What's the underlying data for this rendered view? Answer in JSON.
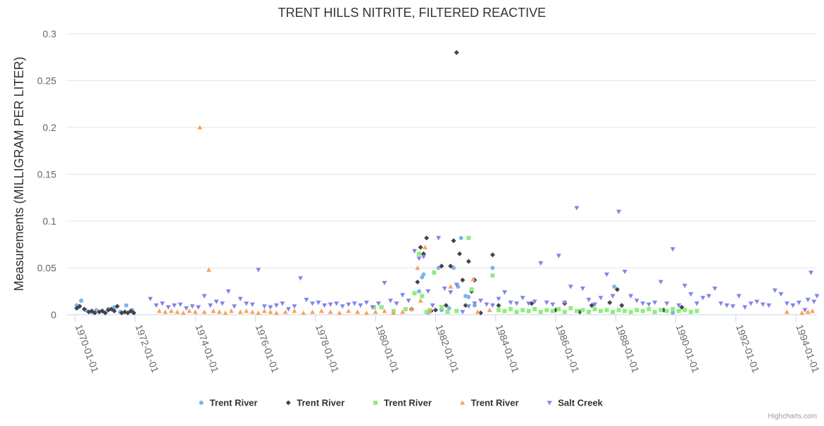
{
  "chart_data": {
    "type": "scatter",
    "title": "TRENT HILLS NITRITE, FILTERED REACTIVE",
    "ylabel": "Measurements (MILLIGRAM PER LITER)",
    "xlabel": "",
    "ylim": [
      0,
      0.3
    ],
    "yticks": [
      0,
      0.05,
      0.1,
      0.15,
      0.2,
      0.25,
      0.3
    ],
    "ytick_labels": [
      "0",
      "0.05",
      "0.1",
      "0.15",
      "0.2",
      "0.25",
      "0.3"
    ],
    "xlim": [
      1969.7,
      1994.7
    ],
    "xticks": [
      1970,
      1972,
      1974,
      1976,
      1978,
      1980,
      1982,
      1984,
      1986,
      1988,
      1990,
      1992,
      1994
    ],
    "xtick_labels": [
      "1970-01-01",
      "1972-01-01",
      "1974-01-01",
      "1976-01-01",
      "1978-01-01",
      "1980-01-01",
      "1982-01-01",
      "1984-01-01",
      "1986-01-01",
      "1988-01-01",
      "1990-01-01",
      "1992-01-01",
      "1994-01-01"
    ],
    "legend_position": "bottom-center",
    "series": [
      {
        "name": "Trent River",
        "marker": "circle",
        "color": "#7cb5ec",
        "points": [
          [
            1970.05,
            0.01
          ],
          [
            1970.2,
            0.015
          ],
          [
            1970.35,
            0.005
          ],
          [
            1970.55,
            0.003
          ],
          [
            1970.7,
            0.005
          ],
          [
            1970.9,
            0.004
          ],
          [
            1971.1,
            0.006
          ],
          [
            1971.3,
            0.008
          ],
          [
            1971.5,
            0.003
          ],
          [
            1971.7,
            0.01
          ],
          [
            1971.9,
            0.005
          ],
          [
            1981.3,
            0.023
          ],
          [
            1981.45,
            0.025
          ],
          [
            1981.55,
            0.04
          ],
          [
            1981.6,
            0.043
          ],
          [
            1981.75,
            0.002
          ],
          [
            1982.1,
            0.05
          ],
          [
            1982.2,
            0.005
          ],
          [
            1982.45,
            0.007
          ],
          [
            1982.6,
            0.05
          ],
          [
            1982.75,
            0.03
          ],
          [
            1982.85,
            0.082
          ],
          [
            1983.0,
            0.02
          ],
          [
            1983.1,
            0.019
          ],
          [
            1983.3,
            0.01
          ],
          [
            1983.9,
            0.05
          ],
          [
            1987.95,
            0.03
          ],
          [
            1989.9,
            0.002
          ]
        ]
      },
      {
        "name": "Trent River",
        "marker": "diamond",
        "color": "#434348",
        "points": [
          [
            1970.05,
            0.007
          ],
          [
            1970.15,
            0.009
          ],
          [
            1970.3,
            0.006
          ],
          [
            1970.45,
            0.003
          ],
          [
            1970.55,
            0.004
          ],
          [
            1970.65,
            0.002
          ],
          [
            1970.8,
            0.003
          ],
          [
            1970.9,
            0.004
          ],
          [
            1971.0,
            0.002
          ],
          [
            1971.1,
            0.005
          ],
          [
            1971.2,
            0.006
          ],
          [
            1971.3,
            0.004
          ],
          [
            1971.4,
            0.009
          ],
          [
            1971.55,
            0.002
          ],
          [
            1971.65,
            0.003
          ],
          [
            1971.75,
            0.002
          ],
          [
            1971.85,
            0.004
          ],
          [
            1971.95,
            0.002
          ],
          [
            1981.2,
            0.006
          ],
          [
            1981.4,
            0.035
          ],
          [
            1981.5,
            0.072
          ],
          [
            1981.6,
            0.065
          ],
          [
            1981.7,
            0.082
          ],
          [
            1981.85,
            0.004
          ],
          [
            1982.0,
            0.005
          ],
          [
            1982.2,
            0.052
          ],
          [
            1982.35,
            0.01
          ],
          [
            1982.5,
            0.052
          ],
          [
            1982.6,
            0.079
          ],
          [
            1982.7,
            0.28
          ],
          [
            1982.8,
            0.065
          ],
          [
            1982.9,
            0.037
          ],
          [
            1983.0,
            0.01
          ],
          [
            1983.1,
            0.057
          ],
          [
            1983.2,
            0.025
          ],
          [
            1983.3,
            0.037
          ],
          [
            1983.5,
            0.002
          ],
          [
            1983.9,
            0.064
          ],
          [
            1984.1,
            0.01
          ],
          [
            1985.2,
            0.012
          ],
          [
            1986.0,
            0.005
          ],
          [
            1986.3,
            0.012
          ],
          [
            1986.8,
            0.003
          ],
          [
            1987.2,
            0.01
          ],
          [
            1987.8,
            0.013
          ],
          [
            1988.05,
            0.027
          ],
          [
            1988.2,
            0.01
          ],
          [
            1989.6,
            0.005
          ],
          [
            1990.2,
            0.008
          ]
        ]
      },
      {
        "name": "Trent River",
        "marker": "square",
        "color": "#90ed7d",
        "points": [
          [
            1979.95,
            0.008
          ],
          [
            1980.2,
            0.008
          ],
          [
            1980.6,
            0.004
          ],
          [
            1981.0,
            0.006
          ],
          [
            1981.3,
            0.023
          ],
          [
            1981.45,
            0.065
          ],
          [
            1981.55,
            0.02
          ],
          [
            1981.7,
            0.003
          ],
          [
            1981.8,
            0.005
          ],
          [
            1981.95,
            0.045
          ],
          [
            1982.2,
            0.008
          ],
          [
            1982.4,
            0.003
          ],
          [
            1982.7,
            0.004
          ],
          [
            1983.1,
            0.082
          ],
          [
            1983.2,
            0.027
          ],
          [
            1983.9,
            0.042
          ],
          [
            1984.1,
            0.005
          ],
          [
            1984.3,
            0.004
          ],
          [
            1984.5,
            0.006
          ],
          [
            1984.7,
            0.003
          ],
          [
            1984.9,
            0.005
          ],
          [
            1985.1,
            0.004
          ],
          [
            1985.3,
            0.006
          ],
          [
            1985.5,
            0.003
          ],
          [
            1985.7,
            0.005
          ],
          [
            1985.9,
            0.004
          ],
          [
            1986.1,
            0.006
          ],
          [
            1986.3,
            0.003
          ],
          [
            1986.5,
            0.007
          ],
          [
            1986.7,
            0.004
          ],
          [
            1986.9,
            0.005
          ],
          [
            1987.1,
            0.003
          ],
          [
            1987.3,
            0.006
          ],
          [
            1987.5,
            0.004
          ],
          [
            1987.7,
            0.005
          ],
          [
            1987.9,
            0.003
          ],
          [
            1988.1,
            0.005
          ],
          [
            1988.3,
            0.004
          ],
          [
            1988.5,
            0.003
          ],
          [
            1988.7,
            0.005
          ],
          [
            1988.9,
            0.004
          ],
          [
            1989.1,
            0.006
          ],
          [
            1989.3,
            0.003
          ],
          [
            1989.5,
            0.005
          ],
          [
            1989.7,
            0.004
          ],
          [
            1989.9,
            0.006
          ],
          [
            1990.1,
            0.004
          ],
          [
            1990.3,
            0.005
          ],
          [
            1990.5,
            0.003
          ],
          [
            1990.7,
            0.004
          ]
        ]
      },
      {
        "name": "Trent River",
        "marker": "triangle",
        "color": "#f7a35c",
        "points": [
          [
            1972.8,
            0.004
          ],
          [
            1973.0,
            0.003
          ],
          [
            1973.2,
            0.004
          ],
          [
            1973.4,
            0.003
          ],
          [
            1973.6,
            0.002
          ],
          [
            1973.8,
            0.004
          ],
          [
            1974.0,
            0.003
          ],
          [
            1974.15,
            0.2
          ],
          [
            1974.3,
            0.003
          ],
          [
            1974.45,
            0.048
          ],
          [
            1974.6,
            0.004
          ],
          [
            1974.8,
            0.003
          ],
          [
            1975.0,
            0.002
          ],
          [
            1975.2,
            0.004
          ],
          [
            1975.5,
            0.003
          ],
          [
            1975.7,
            0.004
          ],
          [
            1975.9,
            0.003
          ],
          [
            1976.1,
            0.002
          ],
          [
            1976.3,
            0.004
          ],
          [
            1976.5,
            0.003
          ],
          [
            1976.7,
            0.002
          ],
          [
            1977.0,
            0.003
          ],
          [
            1977.3,
            0.004
          ],
          [
            1977.6,
            0.002
          ],
          [
            1977.9,
            0.003
          ],
          [
            1978.2,
            0.004
          ],
          [
            1978.5,
            0.003
          ],
          [
            1978.8,
            0.002
          ],
          [
            1979.1,
            0.004
          ],
          [
            1979.4,
            0.003
          ],
          [
            1979.7,
            0.002
          ],
          [
            1980.0,
            0.003
          ],
          [
            1980.3,
            0.004
          ],
          [
            1980.6,
            0.002
          ],
          [
            1980.9,
            0.003
          ],
          [
            1981.2,
            0.006
          ],
          [
            1981.4,
            0.05
          ],
          [
            1981.5,
            0.015
          ],
          [
            1981.65,
            0.072
          ],
          [
            1981.8,
            0.004
          ],
          [
            1982.5,
            0.03
          ],
          [
            1983.25,
            0.038
          ],
          [
            1983.4,
            0.003
          ],
          [
            1983.8,
            0.005
          ],
          [
            1993.7,
            0.003
          ],
          [
            1994.2,
            0.002
          ],
          [
            1994.4,
            0.003
          ],
          [
            1994.55,
            0.004
          ]
        ]
      },
      {
        "name": "Salt Creek",
        "marker": "triangle-down",
        "color": "#8085e9",
        "points": [
          [
            1972.5,
            0.017
          ],
          [
            1972.7,
            0.01
          ],
          [
            1972.9,
            0.012
          ],
          [
            1973.1,
            0.008
          ],
          [
            1973.3,
            0.01
          ],
          [
            1973.5,
            0.011
          ],
          [
            1973.7,
            0.007
          ],
          [
            1973.9,
            0.009
          ],
          [
            1974.1,
            0.008
          ],
          [
            1974.3,
            0.02
          ],
          [
            1974.5,
            0.01
          ],
          [
            1974.7,
            0.014
          ],
          [
            1974.9,
            0.012
          ],
          [
            1975.1,
            0.025
          ],
          [
            1975.3,
            0.009
          ],
          [
            1975.5,
            0.017
          ],
          [
            1975.7,
            0.012
          ],
          [
            1975.9,
            0.011
          ],
          [
            1976.1,
            0.048
          ],
          [
            1976.3,
            0.009
          ],
          [
            1976.5,
            0.008
          ],
          [
            1976.7,
            0.01
          ],
          [
            1976.9,
            0.012
          ],
          [
            1977.1,
            0.006
          ],
          [
            1977.3,
            0.009
          ],
          [
            1977.5,
            0.039
          ],
          [
            1977.7,
            0.016
          ],
          [
            1977.9,
            0.012
          ],
          [
            1978.1,
            0.013
          ],
          [
            1978.3,
            0.01
          ],
          [
            1978.5,
            0.011
          ],
          [
            1978.7,
            0.012
          ],
          [
            1978.9,
            0.009
          ],
          [
            1979.1,
            0.011
          ],
          [
            1979.3,
            0.012
          ],
          [
            1979.5,
            0.01
          ],
          [
            1979.7,
            0.013
          ],
          [
            1979.9,
            0.008
          ],
          [
            1980.1,
            0.012
          ],
          [
            1980.3,
            0.034
          ],
          [
            1980.5,
            0.015
          ],
          [
            1980.7,
            0.012
          ],
          [
            1980.9,
            0.021
          ],
          [
            1981.1,
            0.015
          ],
          [
            1981.3,
            0.068
          ],
          [
            1981.45,
            0.06
          ],
          [
            1981.6,
            0.062
          ],
          [
            1981.75,
            0.025
          ],
          [
            1981.9,
            0.01
          ],
          [
            1982.1,
            0.082
          ],
          [
            1982.3,
            0.028
          ],
          [
            1982.5,
            0.024
          ],
          [
            1982.7,
            0.032
          ],
          [
            1982.9,
            0.003
          ],
          [
            1983.1,
            0.009
          ],
          [
            1983.3,
            0.012
          ],
          [
            1983.5,
            0.015
          ],
          [
            1983.7,
            0.011
          ],
          [
            1983.9,
            0.01
          ],
          [
            1984.1,
            0.017
          ],
          [
            1984.3,
            0.024
          ],
          [
            1984.5,
            0.013
          ],
          [
            1984.7,
            0.012
          ],
          [
            1984.9,
            0.018
          ],
          [
            1985.1,
            0.012
          ],
          [
            1985.3,
            0.014
          ],
          [
            1985.5,
            0.055
          ],
          [
            1985.7,
            0.013
          ],
          [
            1985.9,
            0.011
          ],
          [
            1986.1,
            0.063
          ],
          [
            1986.3,
            0.013
          ],
          [
            1986.5,
            0.03
          ],
          [
            1986.7,
            0.114
          ],
          [
            1986.9,
            0.028
          ],
          [
            1987.1,
            0.016
          ],
          [
            1987.3,
            0.011
          ],
          [
            1987.5,
            0.018
          ],
          [
            1987.7,
            0.043
          ],
          [
            1987.9,
            0.02
          ],
          [
            1988.1,
            0.11
          ],
          [
            1988.3,
            0.046
          ],
          [
            1988.5,
            0.02
          ],
          [
            1988.7,
            0.015
          ],
          [
            1988.9,
            0.012
          ],
          [
            1989.1,
            0.011
          ],
          [
            1989.3,
            0.013
          ],
          [
            1989.5,
            0.035
          ],
          [
            1989.7,
            0.012
          ],
          [
            1989.9,
            0.07
          ],
          [
            1990.1,
            0.01
          ],
          [
            1990.3,
            0.031
          ],
          [
            1990.5,
            0.022
          ],
          [
            1990.7,
            0.012
          ],
          [
            1990.9,
            0.018
          ],
          [
            1991.1,
            0.02
          ],
          [
            1991.3,
            0.028
          ],
          [
            1991.5,
            0.012
          ],
          [
            1991.7,
            0.01
          ],
          [
            1991.9,
            0.009
          ],
          [
            1992.1,
            0.02
          ],
          [
            1992.3,
            0.008
          ],
          [
            1992.5,
            0.012
          ],
          [
            1992.7,
            0.014
          ],
          [
            1992.9,
            0.011
          ],
          [
            1993.1,
            0.01
          ],
          [
            1993.3,
            0.026
          ],
          [
            1993.5,
            0.022
          ],
          [
            1993.7,
            0.012
          ],
          [
            1993.9,
            0.01
          ],
          [
            1994.1,
            0.013
          ],
          [
            1994.3,
            0.005
          ],
          [
            1994.4,
            0.016
          ],
          [
            1994.5,
            0.045
          ],
          [
            1994.6,
            0.014
          ],
          [
            1994.7,
            0.02
          ]
        ]
      }
    ]
  },
  "credits": "Highcharts.com"
}
